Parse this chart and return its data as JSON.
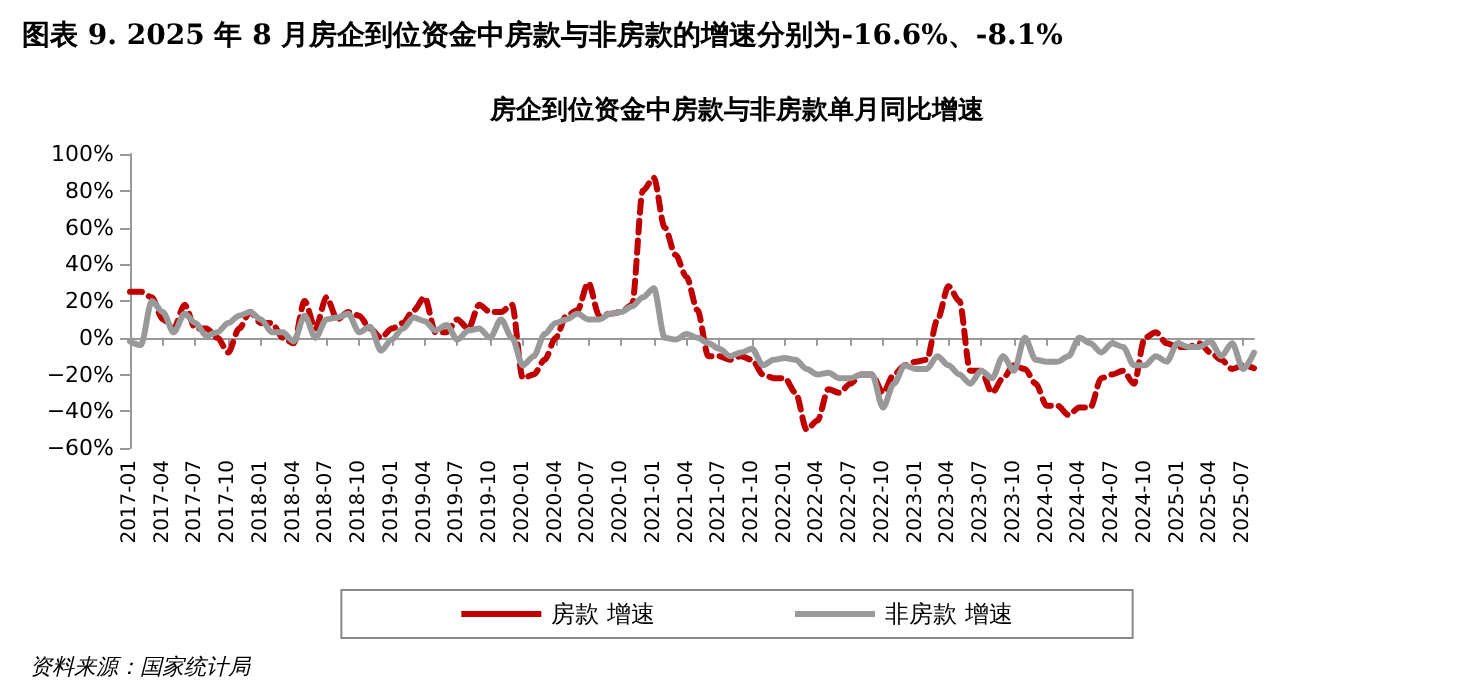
{
  "chart_data": {
    "type": "line",
    "title": "图表 9. 2025 年 8 月房企到位资金中房款与非房款的增速分别为-16.6%、-8.1%",
    "subtitle": "房企到位资金中房款与非房款单月同比增速",
    "annotations": [
      "资料来源：国家统计局"
    ],
    "categories": [
      "2017-01",
      null,
      null,
      "2017-04",
      null,
      null,
      "2017-07",
      null,
      null,
      "2017-10",
      null,
      null,
      "2018-01",
      null,
      null,
      "2018-04",
      null,
      null,
      "2018-07",
      null,
      null,
      "2018-10",
      null,
      null,
      "2019-01",
      null,
      null,
      "2019-04",
      null,
      null,
      "2019-07",
      null,
      null,
      "2019-10",
      null,
      null,
      "2020-01",
      null,
      null,
      "2020-04",
      null,
      null,
      "2020-07",
      null,
      null,
      "2020-10",
      null,
      null,
      "2021-01",
      null,
      null,
      "2021-04",
      null,
      null,
      "2021-07",
      null,
      null,
      "2021-10",
      null,
      null,
      "2022-01",
      null,
      null,
      "2022-04",
      null,
      null,
      "2022-07",
      null,
      null,
      "2022-10",
      null,
      null,
      "2023-01",
      null,
      null,
      "2023-04",
      null,
      null,
      "2023-07",
      null,
      null,
      "2023-10",
      null,
      null,
      "2024-01",
      null,
      null,
      "2024-04",
      null,
      null,
      "2024-07",
      null,
      null,
      "2024-10",
      null,
      null,
      "2025-01",
      null,
      null,
      "2025-04",
      null,
      null,
      "2025-07",
      null
    ],
    "series": [
      {
        "name": "房款 增速",
        "color": "#c00000",
        "line_style": "dashed",
        "values": [
          25,
          25,
          22,
          10,
          5,
          18,
          5,
          5,
          0,
          -8,
          5,
          14,
          8,
          8,
          0,
          -3,
          20,
          5,
          22,
          10,
          14,
          12,
          5,
          0,
          5,
          8,
          15,
          22,
          3,
          3,
          10,
          5,
          18,
          14,
          14,
          18,
          -22,
          -20,
          -12,
          0,
          12,
          15,
          30,
          12,
          13,
          14,
          18,
          80,
          87,
          60,
          45,
          33,
          15,
          -10,
          -10,
          -12,
          -10,
          -12,
          -20,
          -22,
          -22,
          -30,
          -50,
          -45,
          -28,
          -30,
          -25,
          -20,
          -20,
          -30,
          -20,
          -15,
          -13,
          -12,
          10,
          28,
          20,
          -18,
          -18,
          -30,
          -22,
          -15,
          -17,
          -25,
          -37,
          -37,
          -42,
          -38,
          -38,
          -22,
          -20,
          -18,
          -25,
          0,
          3,
          -3,
          -5,
          -5,
          -3,
          -8,
          -12,
          -17,
          -15,
          -16.6
        ]
      },
      {
        "name": "非房款 增速",
        "color": "#999999",
        "line_style": "solid",
        "values": [
          -2,
          -4,
          20,
          14,
          3,
          13,
          8,
          1,
          3,
          8,
          12,
          14,
          10,
          3,
          3,
          -2,
          12,
          0,
          10,
          11,
          13,
          3,
          6,
          -7,
          -1,
          5,
          11,
          9,
          4,
          7,
          -1,
          4,
          5,
          0,
          10,
          0,
          -15,
          -10,
          2,
          8,
          10,
          13,
          10,
          10,
          13,
          14,
          17,
          22,
          27,
          0,
          -1,
          2,
          0,
          -3,
          -6,
          -10,
          -8,
          -6,
          -15,
          -12,
          -11,
          -12,
          -17,
          -20,
          -19,
          -22,
          -22,
          -20,
          -20,
          -38,
          -25,
          -15,
          -17,
          -17,
          -10,
          -15,
          -20,
          -25,
          -18,
          -22,
          -10,
          -18,
          0,
          -12,
          -13,
          -13,
          -10,
          0,
          -3,
          -8,
          -3,
          -5,
          -15,
          -15,
          -10,
          -13,
          -3,
          -5,
          -5,
          -2,
          -10,
          -3,
          -17,
          -8.1
        ]
      }
    ],
    "ylim": [
      -60,
      100
    ],
    "yticks": [
      {
        "value": -60,
        "label": "−60%"
      },
      {
        "value": -40,
        "label": "−40%"
      },
      {
        "value": -20,
        "label": "−20%"
      },
      {
        "value": 0,
        "label": "0%"
      },
      {
        "value": 20,
        "label": "20%"
      },
      {
        "value": 40,
        "label": "40%"
      },
      {
        "value": 60,
        "label": "60%"
      },
      {
        "value": 80,
        "label": "80%"
      },
      {
        "value": 100,
        "label": "100%"
      }
    ],
    "legend": "bottom"
  }
}
